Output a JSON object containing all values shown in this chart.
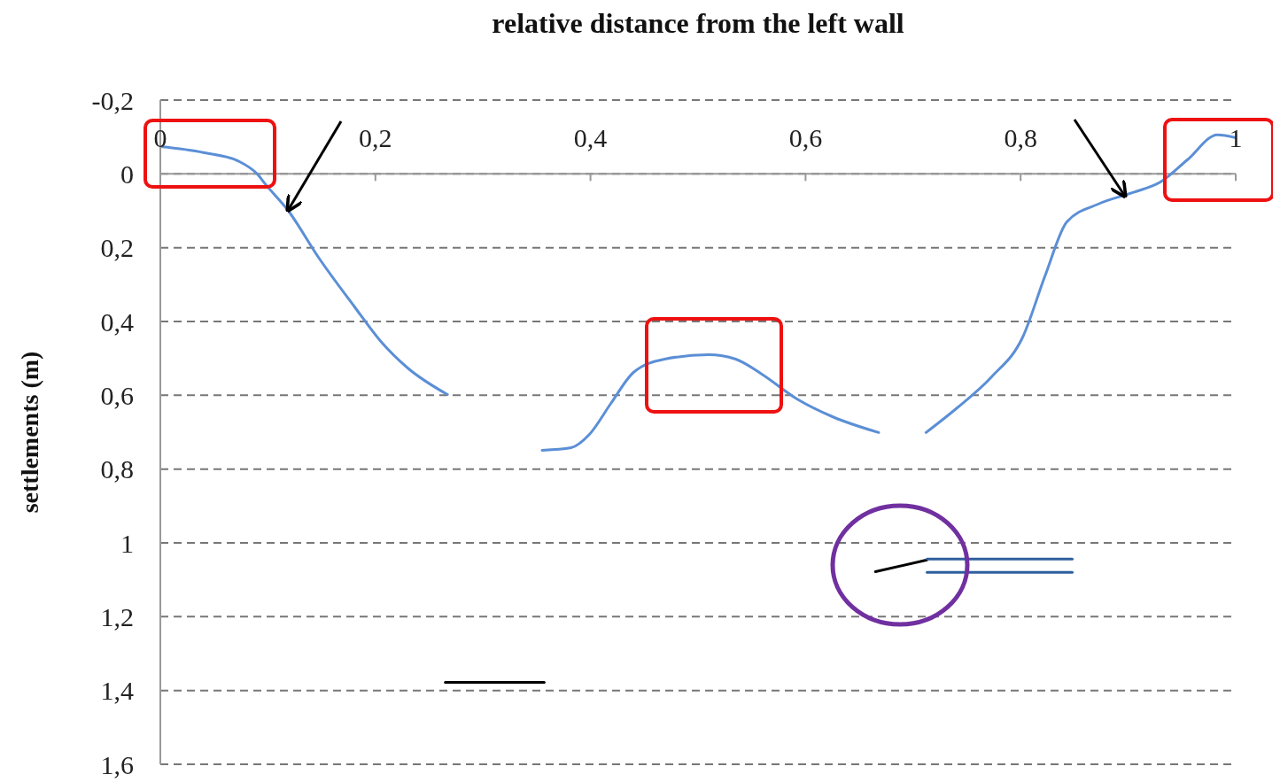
{
  "chart_data": {
    "type": "line",
    "xlabel": "relative distance from the left wall",
    "ylabel": "settlements (m)",
    "xlim": [
      0,
      1
    ],
    "xticks": [
      0,
      {
        "value": 0.2,
        "label": "0,2"
      },
      {
        "value": 0.4,
        "label": "0,4"
      },
      {
        "value": 0.6,
        "label": "0,6"
      },
      {
        "value": 0.8,
        "label": "0,8"
      },
      1
    ],
    "ylim": [
      1.6,
      -0.2
    ],
    "yticks": [
      {
        "value": -0.2,
        "label": "-0,2"
      },
      0,
      {
        "value": 0.2,
        "label": "0,2"
      },
      {
        "value": 0.4,
        "label": "0,4"
      },
      {
        "value": 0.6,
        "label": "0,6"
      },
      {
        "value": 0.8,
        "label": "0,8"
      },
      1,
      {
        "value": 1.2,
        "label": "1,2"
      },
      {
        "value": 1.4,
        "label": "1,4"
      },
      {
        "value": 1.6,
        "label": "1,6"
      }
    ],
    "grid": "y",
    "marker": "none",
    "line_style": "solid",
    "series": [
      {
        "color": "#5b8fd6",
        "x": [
          0,
          0.04,
          0.073,
          0.09,
          0.098,
          0.119,
          0.147,
          0.18,
          0.205,
          0.23,
          0.267
        ],
        "values": [
          -0.074,
          -0.058,
          -0.034,
          0,
          0.029,
          0.1,
          0.226,
          0.358,
          0.454,
          0.526,
          0.598
        ]
      },
      {
        "color": "#5b8fd6",
        "x": [
          0.355,
          0.382,
          0.399,
          0.419,
          0.44,
          0.469,
          0.51,
          0.535,
          0.559,
          0.592,
          0.625,
          0.668
        ],
        "values": [
          0.749,
          0.742,
          0.706,
          0.622,
          0.538,
          0.502,
          0.49,
          0.502,
          0.542,
          0.61,
          0.658,
          0.701
        ]
      },
      {
        "color": "#5b8fd6",
        "x": [
          0.712,
          0.741,
          0.773,
          0.802,
          0.823,
          0.843,
          0.872,
          0.905,
          0.93,
          0.955,
          0.983,
          1
        ],
        "values": [
          0.701,
          0.634,
          0.55,
          0.442,
          0.274,
          0.13,
          0.082,
          0.05,
          0.022,
          -0.038,
          -0.106,
          -0.098
        ]
      },
      {
        "color": "#000000",
        "x": [
          0.265,
          0.357
        ],
        "values": [
          1.378,
          1.378
        ]
      },
      {
        "color": "#000000",
        "x": [
          0.665,
          0.713
        ],
        "values": [
          1.078,
          1.046
        ]
      },
      {
        "color": "#2e5f9e",
        "x": [
          0.713,
          0.848
        ],
        "values": [
          1.044,
          1.044
        ]
      },
      {
        "color": "#2e5f9e",
        "x": [
          0.713,
          0.848
        ],
        "values": [
          1.08,
          1.08
        ]
      }
    ]
  }
}
